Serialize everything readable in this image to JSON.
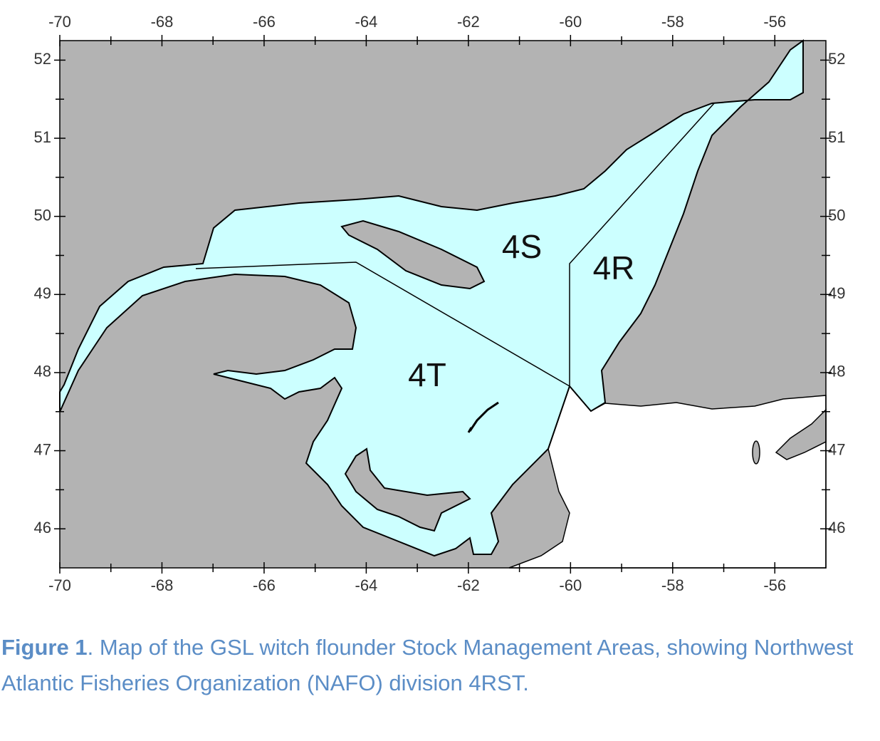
{
  "map": {
    "xlim": [
      -70,
      -55
    ],
    "ylim": [
      45.5,
      52.25
    ],
    "xticks": [
      -70,
      -68,
      -66,
      -64,
      -62,
      -60,
      -58,
      -56
    ],
    "yticks": [
      46,
      47,
      48,
      49,
      50,
      51,
      52
    ],
    "areas": [
      "4S",
      "4R",
      "4T"
    ]
  },
  "caption": {
    "label": "Figure 1",
    "text": ". Map of the GSL witch flounder Stock Management Areas, showing Northwest Atlantic Fisheries Organization (NAFO) division 4RST."
  }
}
